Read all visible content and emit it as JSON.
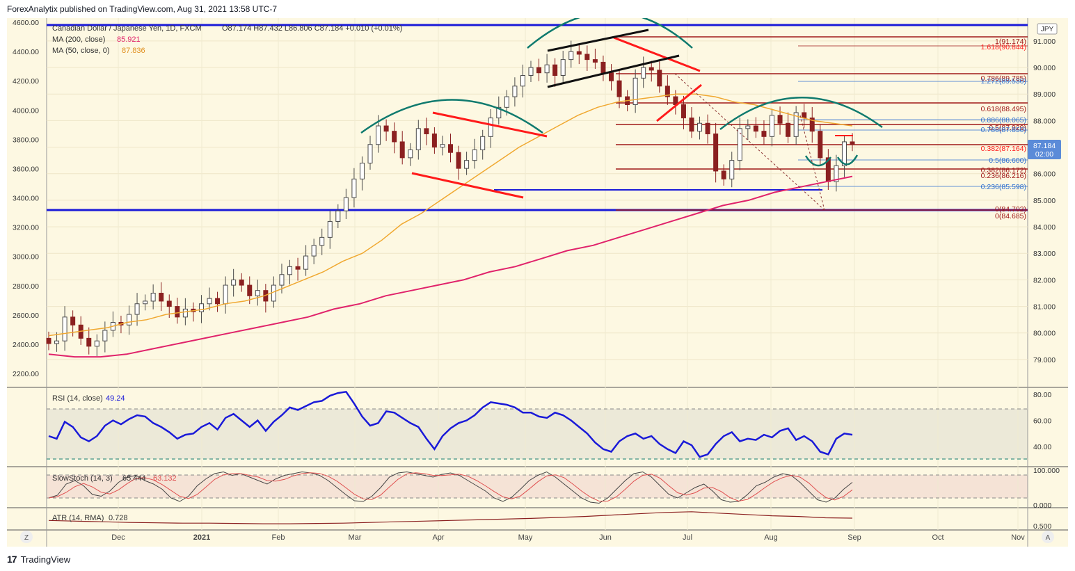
{
  "header": {
    "published": "ForexAnalytix published on TradingView.com, Aug 31, 2021 13:58 UTC-7"
  },
  "footer": {
    "logo_mark": "17",
    "brand": "TradingView"
  },
  "legend": {
    "symbol": "Canadian Dollar / Japanese Yen, 1D, FXCM",
    "ohlc": "O87.174  H87.432  L86.806  C87.184  +0.010 (+0.01%)",
    "ma200_label": "MA (200, close)",
    "ma200_value": "85.921",
    "ma50_label": "MA (50, close, 0)",
    "ma50_value": "87.836"
  },
  "currency_badge": "JPY",
  "price_badge": {
    "value": "87.184",
    "timer": "02:00"
  },
  "left_axis_ticks": [
    "4600.00",
    "4400.00",
    "4200.00",
    "4000.00",
    "3800.00",
    "3600.00",
    "3400.00",
    "3200.00",
    "3000.00",
    "2800.00",
    "2600.00",
    "2400.00",
    "2200.00"
  ],
  "right_axis_ticks": [
    "91.000",
    "90.000",
    "89.000",
    "88.000",
    "87.000",
    "86.000",
    "85.000",
    "84.000",
    "83.000",
    "82.000",
    "81.000",
    "80.000",
    "79.000"
  ],
  "fib_labels": {
    "f1": "1(91.174)",
    "f1618": "1.618(90.844)",
    "f786": "0.786(89.785)",
    "f1272": "1.272(89.530)",
    "f618": "0.618(88.495)",
    "f886": "0.886(88.065)",
    "f5a": "0.5(87.929)",
    "f786b": "0.786(87.850)",
    "f382": "0.382(87.164)",
    "f5b": "0.5(86.600)",
    "f382b": "0.382(86.172)",
    "f236a": "0.236(86.216)",
    "f236b": "0.236(85.598)",
    "f0a": "0(84.702)",
    "f0b": "0(84.685)"
  },
  "month_labels": [
    "Dec",
    "2021",
    "Feb",
    "Mar",
    "Apr",
    "May",
    "Jun",
    "Jul",
    "Aug",
    "Sep",
    "Oct",
    "Nov"
  ],
  "corner_labels": {
    "left": "Z",
    "right": "A"
  },
  "rsi": {
    "label": "RSI (14, close)",
    "value": "49.24",
    "ticks": [
      "80.00",
      "60.00",
      "40.00"
    ]
  },
  "stoch": {
    "label": "SlowStoch (14, 3)",
    "k_value": "65.444",
    "d_value": "63.132",
    "ticks": [
      "100.000",
      "0.000"
    ]
  },
  "atr": {
    "label": "ATR (14, RMA)",
    "value": "0.728",
    "ticks": [
      "0.500"
    ]
  },
  "colors": {
    "background": "#fdf8e2",
    "up_candle": "#4a4a4a",
    "down_candle": "#8b2020",
    "ma200": "#e0236b",
    "ma50": "#f0a830",
    "blue_level": "#1a1ad8",
    "red_trend": "#ff1a1a",
    "arc": "#0f7a6e",
    "fib_red": "#a01818",
    "fib_blue": "#3070d0",
    "rsi_line": "#1a1ad8",
    "badge": "#5b8bd8"
  },
  "chart_data": {
    "type": "candlestick",
    "symbol": "CADJPY",
    "timeframe": "1D",
    "y_range": [
      78.5,
      91.6
    ],
    "closes_approx": [
      79.6,
      79.7,
      80.6,
      80.3,
      79.8,
      79.5,
      79.7,
      80.1,
      80.4,
      80.3,
      80.7,
      81.1,
      81.2,
      81.5,
      81.2,
      81.0,
      80.6,
      80.9,
      80.8,
      81.1,
      81.3,
      81.1,
      81.8,
      82.0,
      81.8,
      81.4,
      81.6,
      81.2,
      81.8,
      82.2,
      82.5,
      82.4,
      82.9,
      83.3,
      83.6,
      84.2,
      84.6,
      85.1,
      85.8,
      86.4,
      87.1,
      87.8,
      87.6,
      87.2,
      86.6,
      86.9,
      87.7,
      87.5,
      87.0,
      87.1,
      86.8,
      86.2,
      86.5,
      86.9,
      87.4,
      88.1,
      88.5,
      88.9,
      89.3,
      89.7,
      90.0,
      89.8,
      90.1,
      89.7,
      90.3,
      90.6,
      90.5,
      90.3,
      90.2,
      89.8,
      89.5,
      88.9,
      88.6,
      89.6,
      90.0,
      89.9,
      89.3,
      88.9,
      88.6,
      88.1,
      87.6,
      87.9,
      87.5,
      86.1,
      85.8,
      86.5,
      87.7,
      87.8,
      87.6,
      87.4,
      88.2,
      87.9,
      87.4,
      88.3,
      88.1,
      87.6,
      86.6,
      85.7,
      86.3,
      87.2,
      87.1
    ],
    "ma50_approx": [
      79.9,
      80.0,
      80.1,
      80.2,
      80.4,
      80.5,
      80.7,
      80.8,
      80.9,
      81.1,
      81.2,
      81.4,
      81.7,
      82.0,
      82.3,
      82.7,
      83.0,
      83.5,
      84.1,
      84.5,
      85.0,
      85.5,
      86.0,
      86.5,
      87.0,
      87.4,
      87.8,
      88.2,
      88.5,
      88.7,
      88.8,
      88.9,
      89.0,
      89.0,
      88.9,
      88.7,
      88.6,
      88.4,
      88.2,
      88.0,
      87.9,
      87.8
    ],
    "ma200_approx": [
      79.2,
      79.1,
      79.1,
      79.2,
      79.4,
      79.6,
      79.8,
      80.0,
      80.2,
      80.4,
      80.6,
      80.9,
      81.1,
      81.4,
      81.6,
      81.8,
      82.0,
      82.3,
      82.5,
      82.8,
      83.1,
      83.3,
      83.6,
      83.9,
      84.2,
      84.5,
      84.8,
      85.0,
      85.3,
      85.5,
      85.7,
      85.9
    ],
    "horizontal_levels": [
      91.57,
      84.7,
      85.5
    ],
    "fib_levels": [
      91.174,
      90.844,
      89.785,
      89.53,
      88.495,
      88.065,
      87.929,
      87.85,
      87.164,
      86.6,
      86.216,
      86.172,
      85.598,
      84.702,
      84.685
    ],
    "rsi_approx": [
      48,
      46,
      59,
      55,
      47,
      44,
      48,
      56,
      60,
      57,
      61,
      64,
      63,
      58,
      55,
      51,
      46,
      49,
      50,
      55,
      58,
      53,
      62,
      65,
      60,
      55,
      60,
      52,
      59,
      64,
      70,
      68,
      71,
      74,
      75,
      79,
      81,
      82,
      73,
      63,
      56,
      58,
      67,
      66,
      62,
      58,
      55,
      46,
      38,
      48,
      54,
      58,
      60,
      64,
      70,
      74,
      73,
      72,
      70,
      66,
      66,
      63,
      62,
      66,
      64,
      60,
      55,
      50,
      43,
      38,
      36,
      44,
      48,
      50,
      46,
      48,
      42,
      38,
      35,
      44,
      41,
      32,
      34,
      42,
      48,
      51,
      44,
      46,
      45,
      49,
      47,
      52,
      54,
      45,
      48,
      44,
      36,
      34,
      46,
      50,
      49
    ],
    "stoch_approx": [
      20,
      28,
      60,
      70,
      55,
      30,
      25,
      40,
      65,
      80,
      85,
      70,
      60,
      45,
      20,
      10,
      25,
      55,
      75,
      90,
      95,
      85,
      90,
      80,
      70,
      60,
      75,
      85,
      90,
      95,
      92,
      85,
      70,
      50,
      30,
      12,
      10,
      25,
      50,
      80,
      92,
      95,
      90,
      85,
      80,
      88,
      92,
      85,
      70,
      55,
      40,
      20,
      10,
      22,
      45,
      70,
      85,
      95,
      80,
      60,
      40,
      20,
      8,
      5,
      20,
      45,
      70,
      90,
      95,
      80,
      55,
      30,
      20,
      35,
      50,
      60,
      40,
      15,
      8,
      10,
      30,
      55,
      65,
      80,
      90,
      85,
      65,
      40,
      15,
      8,
      20,
      45,
      65
    ],
    "atr_approx": [
      0.66,
      0.64,
      0.62,
      0.6,
      0.59,
      0.58,
      0.58,
      0.57,
      0.56,
      0.56,
      0.57,
      0.58,
      0.6,
      0.62,
      0.64,
      0.66,
      0.68,
      0.7,
      0.72,
      0.75,
      0.78,
      0.82,
      0.86,
      0.9,
      0.92,
      0.88,
      0.84,
      0.8,
      0.78,
      0.74,
      0.73
    ]
  }
}
